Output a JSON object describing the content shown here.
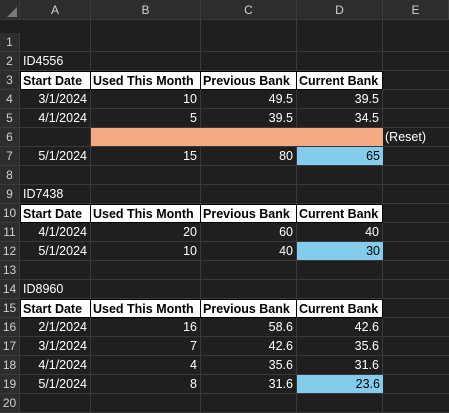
{
  "columns": [
    "A",
    "B",
    "C",
    "D",
    "E"
  ],
  "rows": [
    "1",
    "2",
    "3",
    "4",
    "5",
    "6",
    "7",
    "8",
    "9",
    "10",
    "11",
    "12",
    "13",
    "14",
    "15",
    "16",
    "17",
    "18",
    "19",
    "20"
  ],
  "headers": {
    "start_date": "Start Date",
    "used_this_month": "Used This Month",
    "previous_bank": "Previous Bank",
    "current_bank": "Current Bank"
  },
  "groups": [
    {
      "id": "ID4556",
      "data": [
        {
          "start_date": "3/1/2024",
          "used": "10",
          "previous": "49.5",
          "current": "39.5"
        },
        {
          "start_date": "4/1/2024",
          "used": "5",
          "previous": "39.5",
          "current": "34.5"
        }
      ],
      "reset_label": "(Reset)",
      "after_reset": {
        "start_date": "5/1/2024",
        "used": "15",
        "previous": "80",
        "current": "65"
      }
    },
    {
      "id": "ID7438",
      "data": [
        {
          "start_date": "4/1/2024",
          "used": "20",
          "previous": "60",
          "current": "40"
        },
        {
          "start_date": "5/1/2024",
          "used": "10",
          "previous": "40",
          "current": "30"
        }
      ]
    },
    {
      "id": "ID8960",
      "data": [
        {
          "start_date": "2/1/2024",
          "used": "16",
          "previous": "58.6",
          "current": "42.6"
        },
        {
          "start_date": "3/1/2024",
          "used": "7",
          "previous": "42.6",
          "current": "35.6"
        },
        {
          "start_date": "4/1/2024",
          "used": "4",
          "previous": "35.6",
          "current": "31.6"
        },
        {
          "start_date": "5/1/2024",
          "used": "8",
          "previous": "31.6",
          "current": "23.6"
        }
      ]
    }
  ],
  "colors": {
    "highlight_blue": "#83cceb",
    "highlight_orange": "#f4ab84",
    "background": "#1f1f1f"
  }
}
